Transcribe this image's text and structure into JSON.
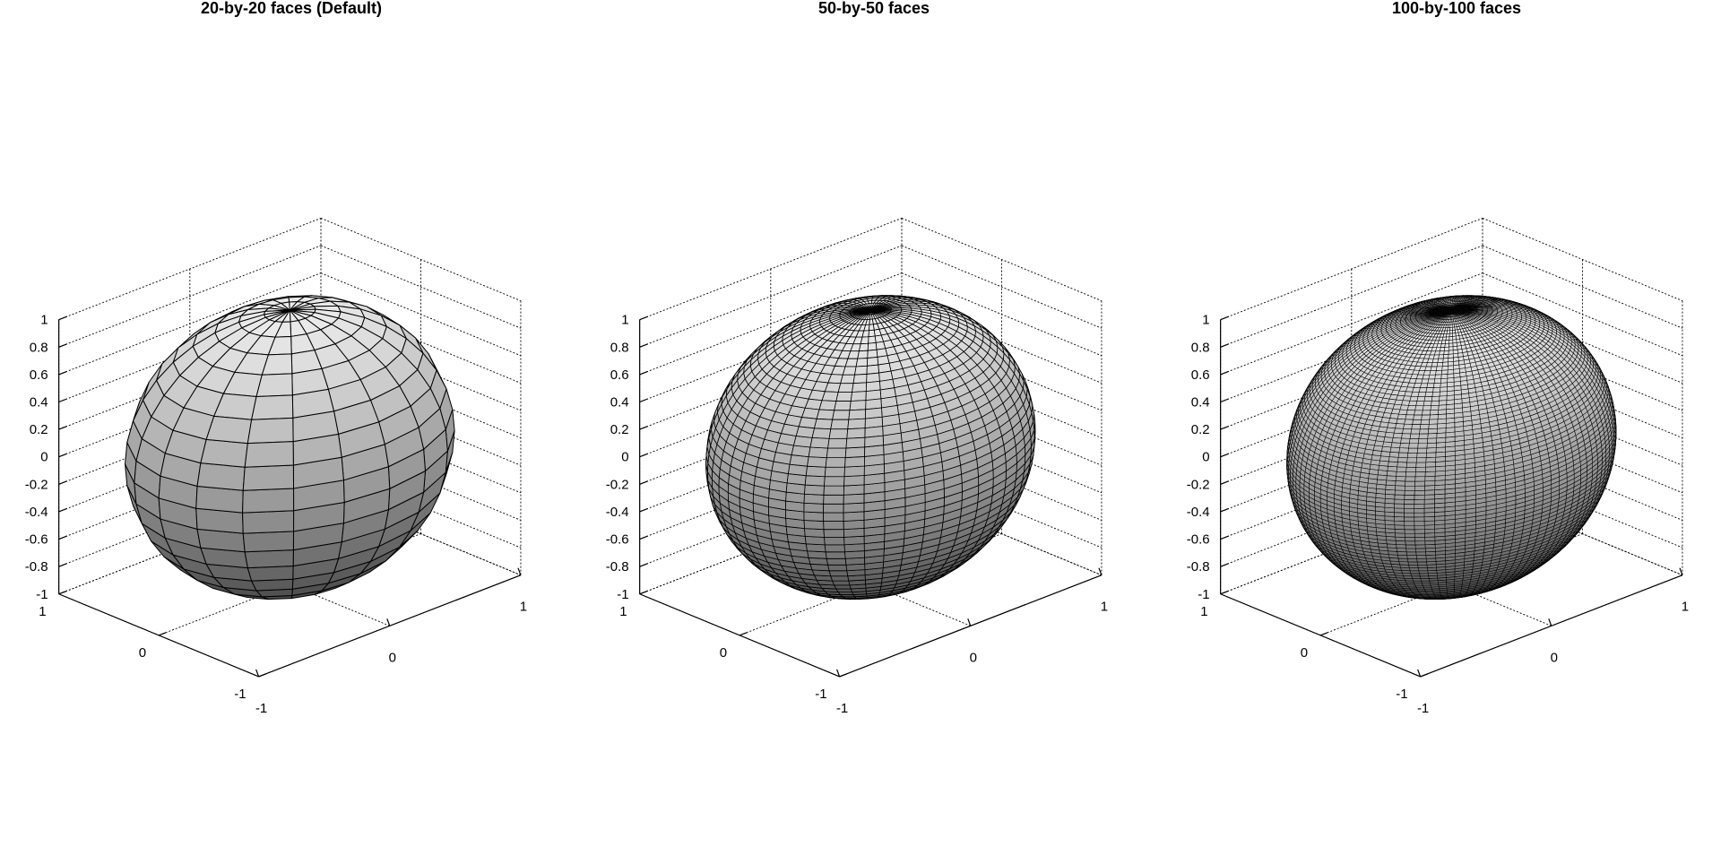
{
  "chart_data": [
    {
      "type": "surface",
      "title": "20-by-20 faces (Default)",
      "faces": 20,
      "xlim": [
        -1,
        1
      ],
      "ylim": [
        -1,
        1
      ],
      "zlim": [
        -1,
        1
      ],
      "x_ticks": [
        "-1",
        "0",
        "1"
      ],
      "y_ticks": [
        "-1",
        "0",
        "1"
      ],
      "z_ticks": [
        "-1",
        "-0.8",
        "-0.6",
        "-0.4",
        "-0.2",
        "0",
        "0.2",
        "0.4",
        "0.6",
        "0.8",
        "1"
      ],
      "grid": true,
      "colormap": "gray"
    },
    {
      "type": "surface",
      "title": "50-by-50 faces",
      "faces": 50,
      "xlim": [
        -1,
        1
      ],
      "ylim": [
        -1,
        1
      ],
      "zlim": [
        -1,
        1
      ],
      "x_ticks": [
        "-1",
        "0",
        "1"
      ],
      "y_ticks": [
        "-1",
        "0",
        "1"
      ],
      "z_ticks": [
        "-1",
        "-0.8",
        "-0.6",
        "-0.4",
        "-0.2",
        "0",
        "0.2",
        "0.4",
        "0.6",
        "0.8",
        "1"
      ],
      "grid": true,
      "colormap": "gray"
    },
    {
      "type": "surface",
      "title": "100-by-100 faces",
      "faces": 100,
      "xlim": [
        -1,
        1
      ],
      "ylim": [
        -1,
        1
      ],
      "zlim": [
        -1,
        1
      ],
      "x_ticks": [
        "-1",
        "0",
        "1"
      ],
      "y_ticks": [
        "-1",
        "0",
        "1"
      ],
      "z_ticks": [
        "-1",
        "-0.8",
        "-0.6",
        "-0.4",
        "-0.2",
        "0",
        "0.2",
        "0.4",
        "0.6",
        "0.8",
        "1"
      ],
      "grid": true,
      "colormap": "gray"
    }
  ]
}
